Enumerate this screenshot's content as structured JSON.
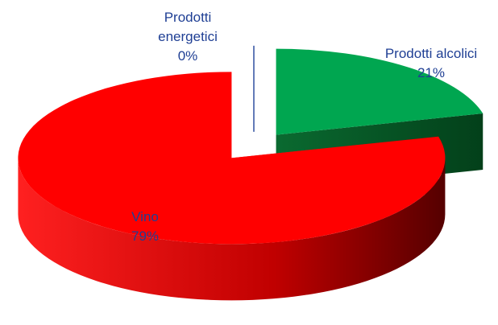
{
  "chart_data": {
    "type": "pie",
    "categories": [
      "Prodotti energetici",
      "Prodotti alcolici",
      "Vino"
    ],
    "values": [
      0,
      21,
      79
    ],
    "value_labels": [
      "0%",
      "21%",
      "79%"
    ],
    "colors": [
      "#2f4fa0",
      "#00a650",
      "#ff0000"
    ]
  }
}
